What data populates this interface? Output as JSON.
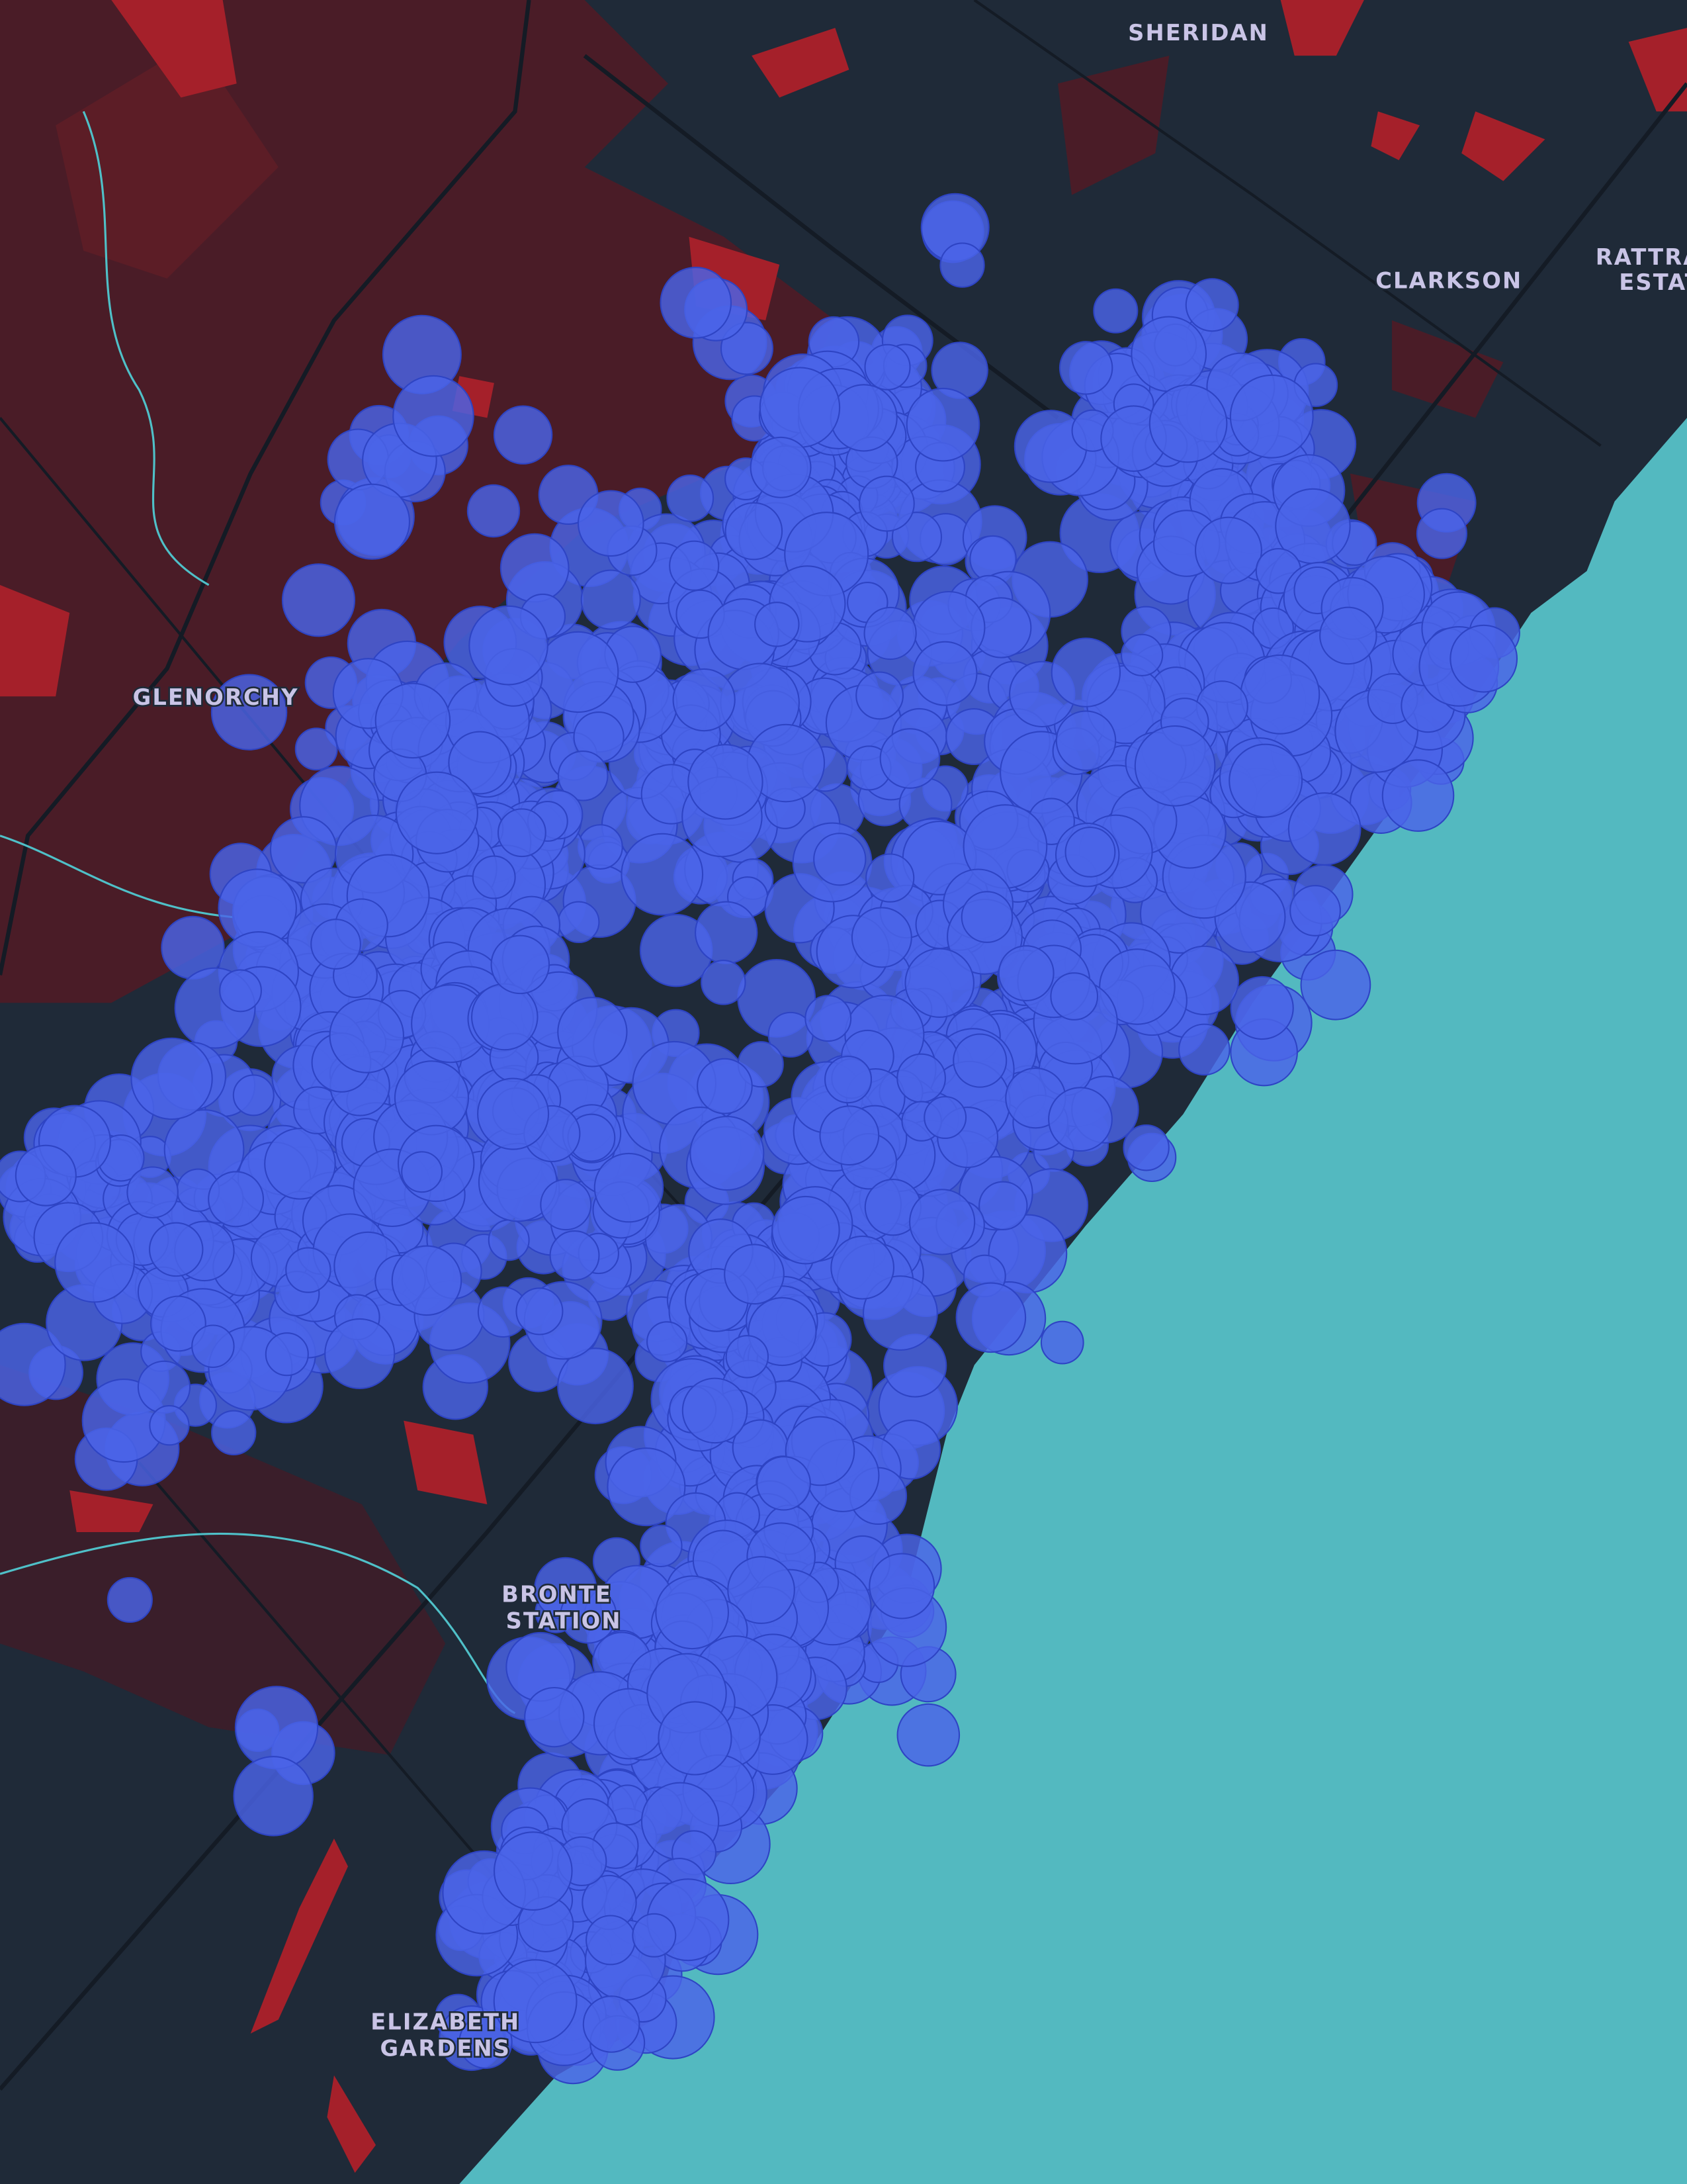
{
  "labels": {
    "sheridan": "SHERIDAN",
    "clarkson": "CLARKSON",
    "rattray_1": "RATTRAY",
    "rattray_2": "ESTATES",
    "glenorchy": "GLENORCHY",
    "bronte_1": "BRONTE",
    "bronte_2": "STATION",
    "elizabeth_1": "ELIZABETH",
    "elizabeth_2": "GARDENS"
  }
}
